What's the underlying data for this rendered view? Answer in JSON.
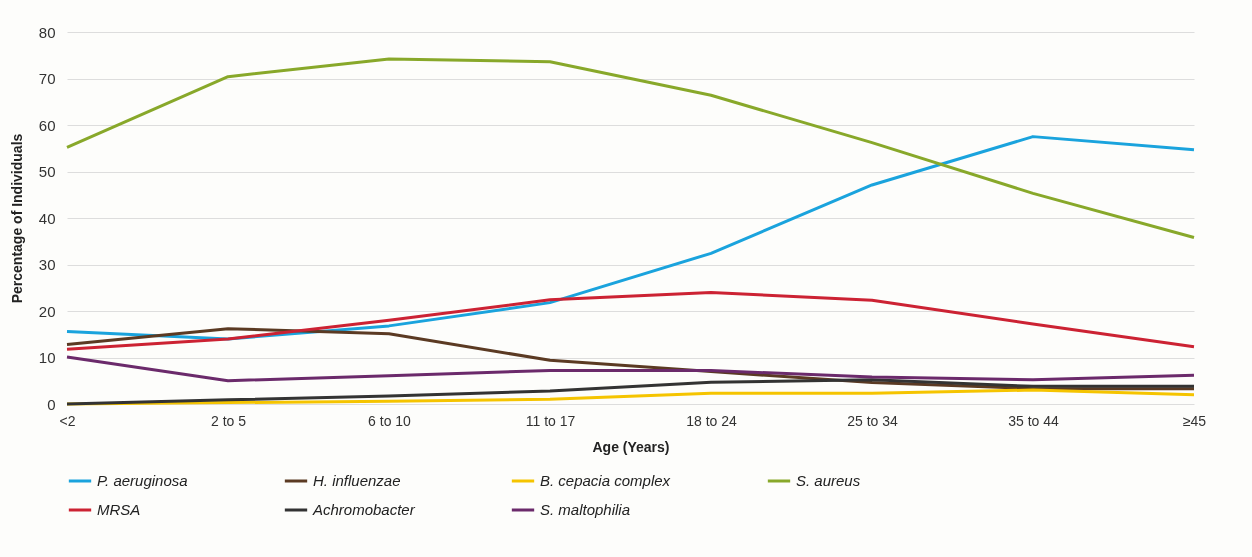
{
  "chart_data": {
    "type": "line",
    "xlabel": "Age (Years)",
    "ylabel": "Percentage of Individuals",
    "categories": [
      "<2",
      "2 to 5",
      "6 to 10",
      "11 to 17",
      "18 to 24",
      "25 to 34",
      "35 to 44",
      "≥45"
    ],
    "ylim": [
      0,
      80
    ],
    "yticks": [
      0,
      10,
      20,
      30,
      40,
      50,
      60,
      70,
      80
    ],
    "grid": "y",
    "legend": "bottom",
    "marker": "none",
    "line_style": "solid",
    "series": [
      {
        "name": "P. aeruginosa",
        "color": "#1aa3dd",
        "values": [
          15.6,
          14.0,
          16.8,
          21.8,
          32.4,
          47.1,
          57.5,
          54.7
        ]
      },
      {
        "name": "H. influenzae",
        "color": "#5b3a23",
        "values": [
          12.8,
          16.2,
          15.1,
          9.4,
          7.0,
          4.6,
          3.3,
          3.3
        ]
      },
      {
        "name": "B. cepacia complex",
        "color": "#f5c400",
        "values": [
          0,
          0.3,
          0.6,
          1.0,
          2.3,
          2.3,
          3.0,
          2.0
        ]
      },
      {
        "name": "S. aureus",
        "color": "#88a82a",
        "values": [
          55.2,
          70.4,
          74.2,
          73.6,
          66.4,
          56.2,
          45.3,
          35.8
        ]
      },
      {
        "name": "MRSA",
        "color": "#cc2233",
        "values": [
          11.8,
          14.0,
          18.0,
          22.4,
          24.0,
          22.3,
          17.2,
          12.3
        ]
      },
      {
        "name": "Achromobacter",
        "color": "#333333",
        "values": [
          0,
          0.9,
          1.7,
          2.8,
          4.7,
          5.2,
          3.8,
          3.8
        ]
      },
      {
        "name": "S. maltophilia",
        "color": "#6b2a6b",
        "values": [
          10.1,
          5.0,
          6.1,
          7.2,
          7.2,
          5.8,
          5.2,
          6.2
        ]
      }
    ]
  }
}
